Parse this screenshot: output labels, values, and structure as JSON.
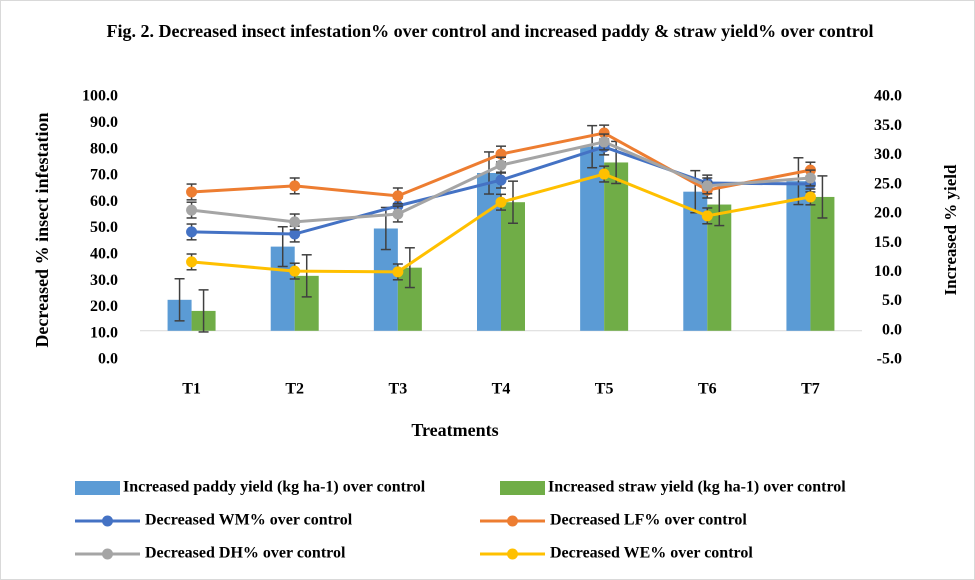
{
  "chart_data": {
    "type": "combo",
    "title": "Fig. 2. Decreased insect infestation% over control and increased paddy & straw yield% over control",
    "x_label": "Treatments",
    "y_label": "Decreased  % insect infestation",
    "y2_label": "Increased % yield",
    "categories": [
      "T1",
      "T2",
      "T3",
      "T4",
      "T5",
      "T6",
      "T7"
    ],
    "ylim": [
      0,
      100
    ],
    "yticks": [
      {
        "value": 0,
        "label": "0.0"
      },
      {
        "value": 10,
        "label": "10.0"
      },
      {
        "value": 20,
        "label": "20.0"
      },
      {
        "value": 30,
        "label": "30.0"
      },
      {
        "value": 40,
        "label": "40.0"
      },
      {
        "value": 50,
        "label": "50.0"
      },
      {
        "value": 60,
        "label": "60.0"
      },
      {
        "value": 70,
        "label": "70.0"
      },
      {
        "value": 80,
        "label": "80.0"
      },
      {
        "value": 90,
        "label": "90.0"
      },
      {
        "value": 100,
        "label": "100.0"
      }
    ],
    "y2lim": [
      -5,
      40
    ],
    "y2ticks": [
      {
        "value": -5,
        "label": "-5.0"
      },
      {
        "value": 0,
        "label": "0.0"
      },
      {
        "value": 5,
        "label": "5.0"
      },
      {
        "value": 10,
        "label": "10.0"
      },
      {
        "value": 15,
        "label": "15.0"
      },
      {
        "value": 20,
        "label": "20.0"
      },
      {
        "value": 25,
        "label": "25.0"
      },
      {
        "value": 30,
        "label": "30.0"
      },
      {
        "value": 35,
        "label": "35.0"
      },
      {
        "value": 40,
        "label": "40.0"
      }
    ],
    "series": [
      {
        "name": "Increased paddy yield  (kg ha-1) over control",
        "type": "bar",
        "axis": "y2",
        "color": "#5b9bd5",
        "values": [
          5.3,
          14.4,
          17.5,
          27.0,
          31.5,
          23.8,
          25.6
        ],
        "errors": [
          3.6,
          3.4,
          3.6,
          3.6,
          3.6,
          3.6,
          4.0
        ]
      },
      {
        "name": "Increased straw yield  (kg ha-1) over control",
        "type": "bar",
        "axis": "y2",
        "color": "#70ad47",
        "values": [
          3.4,
          9.4,
          10.8,
          22.0,
          28.8,
          21.6,
          22.9
        ],
        "errors": [
          3.6,
          3.6,
          3.4,
          3.6,
          3.6,
          3.6,
          3.6
        ]
      },
      {
        "name": "Decreased WM% over control",
        "type": "line",
        "color": "#4472c4",
        "values": [
          48.7,
          47.9,
          58.6,
          68.4,
          81.0,
          67.3,
          66.9
        ],
        "errors": [
          3,
          3,
          3,
          3,
          3,
          3,
          3
        ]
      },
      {
        "name": "Decreased LF% over control",
        "type": "line",
        "color": "#ed7d31",
        "values": [
          63.9,
          66.2,
          62.4,
          78.3,
          86.3,
          64.6,
          72.2
        ],
        "errors": [
          3,
          3,
          3,
          3,
          3,
          3,
          3
        ]
      },
      {
        "name": "Decreased DH% over control",
        "type": "line",
        "color": "#a5a5a5",
        "values": [
          57.0,
          52.5,
          55.5,
          74.1,
          82.9,
          66.2,
          69.2
        ],
        "errors": [
          3,
          3,
          3,
          3,
          3,
          3,
          3
        ]
      },
      {
        "name": "Decreased WE% over control",
        "type": "line",
        "color": "#ffc000",
        "values": [
          37.3,
          33.8,
          33.5,
          60.0,
          70.7,
          54.8,
          62.0
        ],
        "errors": [
          3,
          3,
          3,
          3,
          3,
          3,
          3
        ]
      }
    ]
  }
}
